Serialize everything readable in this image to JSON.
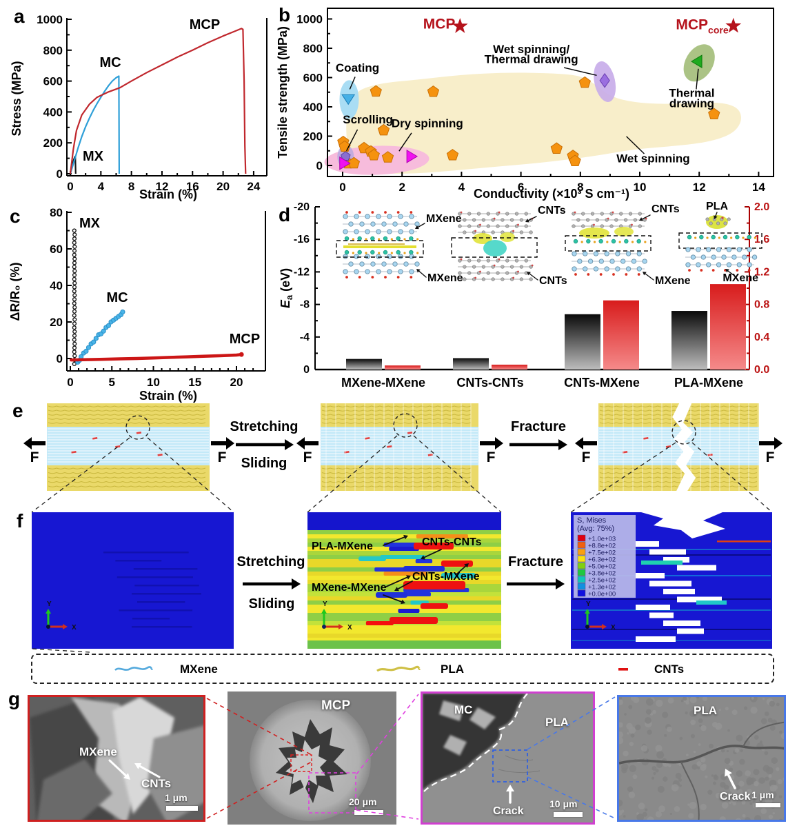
{
  "panels": {
    "a": "a",
    "b": "b",
    "c": "c",
    "d": "d",
    "e": "e",
    "f": "f",
    "g": "g"
  },
  "chart_data": [
    {
      "id": "a",
      "type": "line",
      "title": "",
      "xlabel": "Strain (%)",
      "ylabel": "Stress (MPa)",
      "xlim": [
        0,
        25.5
      ],
      "ylim": [
        0,
        1000
      ],
      "xticks": [
        0,
        4,
        8,
        12,
        16,
        20,
        24
      ],
      "yticks": [
        0,
        200,
        400,
        600,
        800,
        1000
      ],
      "series": [
        {
          "name": "MX",
          "color": "#1a1a1a",
          "points": [
            [
              0,
              0
            ],
            [
              0.15,
              30
            ],
            [
              0.3,
              62
            ],
            [
              0.45,
              90
            ],
            [
              0.58,
              108
            ],
            [
              0.65,
              112
            ],
            [
              0.7,
              0
            ]
          ]
        },
        {
          "name": "MC",
          "color": "#2e9fd8",
          "points": [
            [
              0,
              0
            ],
            [
              0.5,
              80
            ],
            [
              1,
              165
            ],
            [
              1.5,
              240
            ],
            [
              2,
              305
            ],
            [
              2.5,
              360
            ],
            [
              3,
              410
            ],
            [
              3.5,
              455
            ],
            [
              4,
              495
            ],
            [
              4.5,
              535
            ],
            [
              5,
              570
            ],
            [
              5.5,
              600
            ],
            [
              6,
              622
            ],
            [
              6.35,
              632
            ],
            [
              6.4,
              0
            ]
          ]
        },
        {
          "name": "MCP",
          "color": "#c0272d",
          "points": [
            [
              0,
              0
            ],
            [
              0.4,
              160
            ],
            [
              0.8,
              280
            ],
            [
              1.5,
              380
            ],
            [
              2.5,
              450
            ],
            [
              3.5,
              495
            ],
            [
              5,
              530
            ],
            [
              6.5,
              557
            ],
            [
              8,
              600
            ],
            [
              10,
              655
            ],
            [
              12,
              705
            ],
            [
              14,
              755
            ],
            [
              16,
              800
            ],
            [
              18,
              848
            ],
            [
              20,
              892
            ],
            [
              21.5,
              922
            ],
            [
              22.4,
              940
            ],
            [
              22.6,
              935
            ],
            [
              22.75,
              600
            ],
            [
              22.85,
              180
            ],
            [
              22.95,
              0
            ]
          ]
        }
      ]
    },
    {
      "id": "b",
      "type": "scatter",
      "xlabel": "Conductivity (×10³ S cm⁻¹)",
      "ylabel": "Tensile strength (MPa)",
      "xlim": [
        -0.5,
        14.5
      ],
      "ylim": [
        -75,
        1050
      ],
      "xticks": [
        0,
        2,
        4,
        6,
        8,
        10,
        12,
        14
      ],
      "yticks": [
        0,
        200,
        400,
        600,
        800,
        1000
      ],
      "series": [
        {
          "name": "wet-spinning-pentagon",
          "marker": "pentagon",
          "color": "#f5920f",
          "points": [
            [
              0.02,
              160
            ],
            [
              0.07,
              128
            ],
            [
              0.18,
              15
            ],
            [
              0.38,
              15
            ],
            [
              0.72,
              118
            ],
            [
              0.95,
              95
            ],
            [
              1.05,
              70
            ],
            [
              1.12,
              505
            ],
            [
              1.38,
              240
            ],
            [
              1.52,
              55
            ],
            [
              3.05,
              503
            ],
            [
              3.7,
              70
            ],
            [
              7.2,
              115
            ],
            [
              7.75,
              65
            ],
            [
              7.82,
              30
            ],
            [
              8.15,
              565
            ],
            [
              12.5,
              350
            ]
          ]
        },
        {
          "name": "scrolling-pentagon",
          "marker": "pentagon",
          "color": "#8a6fd0",
          "points": [
            [
              0.1,
              62
            ]
          ]
        },
        {
          "name": "coating-triangle-down",
          "marker": "tri_down",
          "color": "#45b0e6",
          "points": [
            [
              0.19,
              455
            ]
          ]
        },
        {
          "name": "dry-spinning-triangle-right",
          "marker": "tri_right",
          "color": "#f010f0",
          "points": [
            [
              0.04,
              15
            ],
            [
              2.3,
              62
            ]
          ]
        },
        {
          "name": "wet-thermal-diamond",
          "marker": "diamond",
          "color": "#9a6ee0",
          "points": [
            [
              8.82,
              580
            ]
          ]
        },
        {
          "name": "thermal-drawing-triangle-left",
          "marker": "tri_left",
          "color": "#1faa1f",
          "points": [
            [
              11.95,
              710
            ]
          ]
        },
        {
          "name": "this-work-star",
          "marker": "star",
          "color": "#b5121b",
          "points": [
            [
              3.95,
              950
            ],
            [
              13.15,
              952
            ]
          ]
        }
      ],
      "regions": [
        {
          "name": "wet-spinning-region",
          "color": "#f8eeca",
          "points": [
            [
              0.15,
              130
            ],
            [
              0.1,
              320
            ],
            [
              0.35,
              500
            ],
            [
              1.2,
              560
            ],
            [
              2.5,
              585
            ],
            [
              4,
              620
            ],
            [
              5.5,
              635
            ],
            [
              7,
              630
            ],
            [
              8,
              615
            ],
            [
              8.5,
              555
            ],
            [
              9,
              470
            ],
            [
              9.8,
              430
            ],
            [
              10.8,
              418
            ],
            [
              11.8,
              428
            ],
            [
              12.8,
              430
            ],
            [
              13.35,
              390
            ],
            [
              13.45,
              300
            ],
            [
              13.1,
              210
            ],
            [
              12.2,
              155
            ],
            [
              11,
              130
            ],
            [
              9.8,
              110
            ],
            [
              8.8,
              75
            ],
            [
              7.8,
              45
            ],
            [
              6.5,
              15
            ],
            [
              5.2,
              -8
            ],
            [
              4,
              -30
            ],
            [
              3,
              -48
            ],
            [
              2,
              -58
            ],
            [
              1,
              -52
            ],
            [
              0.45,
              -40
            ],
            [
              0.12,
              -8
            ]
          ]
        }
      ],
      "annotations": {
        "coating": "Coating",
        "scrolling": "Scrolling",
        "dry": "Dry spinning",
        "wet_thermal_1": "Wet spinning/",
        "wet_thermal_2": "Thermal drawing",
        "thermal_1": "Thermal",
        "thermal_2": "drawing",
        "wet": "Wet spinning",
        "mcp": "MCP",
        "mcp_core_main": "MCP",
        "mcp_core_sub": "core"
      }
    },
    {
      "id": "c",
      "type": "scatter",
      "xlabel": "Strain (%)",
      "ylabel": "ΔR/R₀ (%)",
      "xlim": [
        -0.5,
        23.5
      ],
      "ylim": [
        -10,
        84
      ],
      "xticks": [
        0,
        5,
        10,
        15,
        20
      ],
      "yticks": [
        0,
        20,
        40,
        60,
        80
      ],
      "series": [
        {
          "name": "MX",
          "marker": "open_circle",
          "color": "#1a1a1a",
          "run": {
            "x": 0.5,
            "y_from": -3,
            "y_to": 70,
            "n": 34
          }
        },
        {
          "name": "MC",
          "marker": "circle",
          "color": "#49b4e8",
          "points": [
            [
              0.9,
              -2
            ],
            [
              1.1,
              -1
            ],
            [
              1.3,
              1
            ],
            [
              1.6,
              3
            ],
            [
              1.9,
              4
            ],
            [
              2.2,
              6
            ],
            [
              2.5,
              8
            ],
            [
              2.8,
              9
            ],
            [
              3.1,
              11
            ],
            [
              3.4,
              13
            ],
            [
              3.7,
              13.5
            ],
            [
              4.0,
              15
            ],
            [
              4.3,
              17
            ],
            [
              4.6,
              18
            ],
            [
              4.9,
              20
            ],
            [
              5.2,
              21
            ],
            [
              5.5,
              22
            ],
            [
              5.8,
              23
            ],
            [
              6.1,
              24
            ],
            [
              6.3,
              25.5
            ]
          ]
        },
        {
          "name": "MCP",
          "marker": "thickline",
          "color": "#cc1616",
          "points": [
            [
              0.1,
              -0.8
            ],
            [
              2,
              -0.6
            ],
            [
              4,
              -0.4
            ],
            [
              6,
              -0.2
            ],
            [
              8,
              0
            ],
            [
              10,
              0.3
            ],
            [
              12,
              0.6
            ],
            [
              14,
              0.9
            ],
            [
              16,
              1.2
            ],
            [
              18,
              1.5
            ],
            [
              20,
              1.9
            ],
            [
              20.6,
              2.2
            ]
          ]
        }
      ]
    },
    {
      "id": "d",
      "type": "bar",
      "ylabel_main": "E",
      "ylabel_sub": "a",
      "ylabel_rest": " (eV)",
      "categories": [
        "MXene-MXene",
        "CNTs-CNTs",
        "CNTs-MXene",
        "PLA-MXene"
      ],
      "left_axis": {
        "ticks": [
          "0",
          "-4",
          "-8",
          "-12",
          "-16",
          "-20"
        ],
        "lim": [
          0,
          -20
        ]
      },
      "right_axis": {
        "ticks": [
          "0.0",
          "0.4",
          "0.8",
          "1.2",
          "1.6",
          "2.0"
        ],
        "lim": [
          0,
          2
        ],
        "color": "#bb1111"
      },
      "series": [
        {
          "name": "binding-energy",
          "axis": "left",
          "color": "black-gradient",
          "values": [
            -1.3,
            -1.4,
            -6.8,
            -7.2
          ]
        },
        {
          "name": "red-series",
          "axis": "right",
          "color": "red-gradient",
          "values": [
            0.05,
            0.06,
            0.85,
            1.05
          ]
        }
      ],
      "insets": [
        {
          "top": "MXene",
          "bottom": "MXene"
        },
        {
          "top": "CNTs",
          "bottom": "CNTs"
        },
        {
          "top": "CNTs",
          "bottom": "MXene"
        },
        {
          "top": "PLA",
          "bottom": "MXene"
        }
      ]
    }
  ],
  "panel_e": {
    "step1_top": "Stretching",
    "step1_bottom": "Sliding",
    "step2": "Fracture",
    "force": "F"
  },
  "panel_f": {
    "step1_top": "Stretching",
    "step1_bottom": "Sliding",
    "step2": "Fracture",
    "interfaces": [
      "PLA-MXene",
      "CNTs-CNTs",
      "CNTs-MXene",
      "MXene-MXene"
    ],
    "legend_title": "S, Mises",
    "legend_subtitle": "(Avg: 75%)",
    "legend_values": [
      "+1.0e+03",
      "+8.8e+02",
      "+7.5e+02",
      "+6.3e+02",
      "+5.0e+02",
      "+3.8e+02",
      "+2.5e+02",
      "+1.3e+02",
      "+0.0e+00"
    ],
    "legend_colors": [
      "#e00010",
      "#f06010",
      "#f8a010",
      "#f8e010",
      "#80d010",
      "#20c840",
      "#10c8b8",
      "#1090e0",
      "#1010e0"
    ],
    "axis_x": "X",
    "axis_y": "Y"
  },
  "legend_row": {
    "items": [
      {
        "label": "MXene",
        "color": "#55aadd",
        "swatch": "wave"
      },
      {
        "label": "PLA",
        "color": "#cfc046",
        "swatch": "wave"
      },
      {
        "label": "CNTs",
        "color": "#e01010",
        "swatch": "dash"
      }
    ]
  },
  "panel_g": {
    "images": [
      {
        "border": "#cf2020",
        "labels": [
          "MXene",
          "CNTs"
        ],
        "scale": "1 μm"
      },
      {
        "border": "none",
        "labels": [
          "MCP"
        ],
        "scale": "20 μm"
      },
      {
        "border": "#d040d0",
        "labels": [
          "MC",
          "PLA",
          "Crack"
        ],
        "scale": "10 μm"
      },
      {
        "border": "#4878e8",
        "labels": [
          "PLA",
          "Crack"
        ],
        "scale": "1 μm"
      }
    ]
  },
  "colors": {
    "mcp_red": "#b5121b",
    "mc_blue": "#2e9fd8",
    "mx_black": "#1a1a1a",
    "pentagon_orange": "#f5920f",
    "region_tan": "#f8eeca",
    "region_pink": "#f7bcdc",
    "region_blue": "#a9ddf4",
    "region_lavender": "#b4a6e0",
    "region_purple": "#c7abe9",
    "region_green": "#9cb870",
    "pla_yellow": "#ead969",
    "mxene_blue_band": "#c3e9f8",
    "fem_blue": "#1616d0"
  }
}
